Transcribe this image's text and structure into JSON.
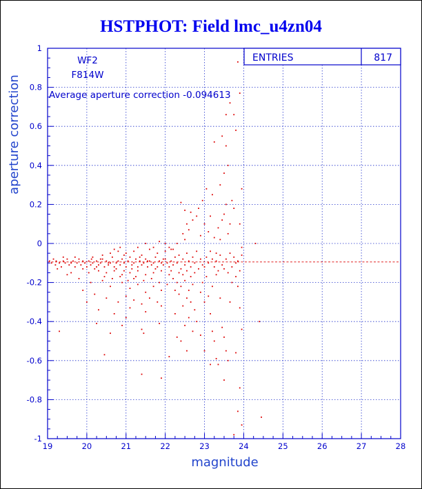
{
  "chart_data": {
    "type": "scatter",
    "title": "HSTPHOT: Field lmc_u4zn04",
    "xlabel": "magnitude",
    "ylabel": "aperture correction",
    "xlim": [
      19,
      28
    ],
    "ylim": [
      -1,
      1
    ],
    "xticks": [
      "19",
      "20",
      "21",
      "22",
      "23",
      "24",
      "25",
      "26",
      "27",
      "28"
    ],
    "yticks": [
      "-1",
      "-0.8",
      "-0.6",
      "-0.4",
      "-0.2",
      "0",
      "0.2",
      "0.4",
      "0.6",
      "0.8",
      "1"
    ],
    "grid": true,
    "annotations": {
      "chip": "WF2",
      "filter": "F814W",
      "average_text": "Average aperture correction -0.094613",
      "average_value": -0.094613
    },
    "stats_box": {
      "label": "ENTRIES",
      "value": "817"
    },
    "colors": {
      "points": "#dd0000",
      "axes": "#0000cc",
      "grid": "#2233cc",
      "average_line": "#dd0000",
      "title": "#0000ee"
    },
    "points": [
      [
        19.05,
        -0.09
      ],
      [
        19.1,
        -0.1
      ],
      [
        19.15,
        -0.08
      ],
      [
        19.2,
        -0.11
      ],
      [
        19.22,
        -0.09
      ],
      [
        19.3,
        -0.1
      ],
      [
        19.35,
        -0.12
      ],
      [
        19.4,
        -0.09
      ],
      [
        19.45,
        -0.1
      ],
      [
        19.5,
        -0.08
      ],
      [
        19.55,
        -0.11
      ],
      [
        19.6,
        -0.1
      ],
      [
        19.65,
        -0.09
      ],
      [
        19.7,
        -0.12
      ],
      [
        19.75,
        -0.1
      ],
      [
        19.8,
        -0.08
      ],
      [
        19.85,
        -0.11
      ],
      [
        19.9,
        -0.09
      ],
      [
        19.95,
        -0.1
      ],
      [
        20.0,
        -0.12
      ],
      [
        20.05,
        -0.09
      ],
      [
        20.1,
        -0.11
      ],
      [
        20.12,
        -0.08
      ],
      [
        20.15,
        -0.1
      ],
      [
        20.2,
        -0.13
      ],
      [
        20.25,
        -0.09
      ],
      [
        20.3,
        -0.11
      ],
      [
        20.35,
        -0.1
      ],
      [
        20.4,
        -0.08
      ],
      [
        20.45,
        -0.12
      ],
      [
        20.5,
        -0.09
      ],
      [
        20.55,
        -0.11
      ],
      [
        20.6,
        -0.1
      ],
      [
        20.65,
        -0.07
      ],
      [
        20.7,
        -0.12
      ],
      [
        20.75,
        -0.1
      ],
      [
        20.8,
        -0.09
      ],
      [
        20.85,
        -0.11
      ],
      [
        20.9,
        -0.08
      ],
      [
        20.95,
        -0.1
      ],
      [
        21.0,
        -0.12
      ],
      [
        21.05,
        -0.09
      ],
      [
        21.1,
        -0.07
      ],
      [
        21.15,
        -0.11
      ],
      [
        21.2,
        -0.1
      ],
      [
        21.25,
        -0.08
      ],
      [
        21.3,
        -0.12
      ],
      [
        21.35,
        -0.09
      ],
      [
        21.4,
        -0.11
      ],
      [
        21.45,
        -0.1
      ],
      [
        21.5,
        -0.08
      ],
      [
        21.55,
        -0.12
      ],
      [
        21.6,
        -0.09
      ],
      [
        21.65,
        -0.11
      ],
      [
        21.7,
        -0.1
      ],
      [
        21.75,
        -0.07
      ],
      [
        21.8,
        -0.12
      ],
      [
        21.85,
        -0.09
      ],
      [
        21.9,
        -0.1
      ],
      [
        21.95,
        -0.08
      ],
      [
        20.4,
        -0.06
      ],
      [
        20.6,
        -0.05
      ],
      [
        20.8,
        -0.04
      ],
      [
        21.0,
        -0.05
      ],
      [
        21.2,
        -0.04
      ],
      [
        21.4,
        -0.06
      ],
      [
        21.6,
        -0.03
      ],
      [
        21.8,
        -0.05
      ],
      [
        22.0,
        -0.04
      ],
      [
        22.2,
        -0.03
      ],
      [
        20.3,
        -0.14
      ],
      [
        20.5,
        -0.15
      ],
      [
        20.7,
        -0.14
      ],
      [
        20.9,
        -0.16
      ],
      [
        21.1,
        -0.15
      ],
      [
        21.3,
        -0.14
      ],
      [
        21.5,
        -0.16
      ],
      [
        21.7,
        -0.15
      ],
      [
        21.9,
        -0.14
      ],
      [
        22.1,
        -0.16
      ],
      [
        19.5,
        -0.16
      ],
      [
        19.8,
        -0.18
      ],
      [
        20.1,
        -0.2
      ],
      [
        20.4,
        -0.19
      ],
      [
        20.6,
        -0.22
      ],
      [
        20.9,
        -0.2
      ],
      [
        21.1,
        -0.23
      ],
      [
        21.3,
        -0.21
      ],
      [
        21.5,
        -0.25
      ],
      [
        21.7,
        -0.22
      ],
      [
        21.9,
        -0.24
      ],
      [
        20.2,
        -0.26
      ],
      [
        20.5,
        -0.28
      ],
      [
        20.8,
        -0.3
      ],
      [
        21.0,
        -0.27
      ],
      [
        21.2,
        -0.29
      ],
      [
        21.4,
        -0.31
      ],
      [
        21.6,
        -0.28
      ],
      [
        21.8,
        -0.3
      ],
      [
        20.0,
        -0.3
      ],
      [
        19.9,
        -0.24
      ],
      [
        20.3,
        -0.34
      ],
      [
        20.7,
        -0.36
      ],
      [
        21.1,
        -0.33
      ],
      [
        21.5,
        -0.35
      ],
      [
        21.9,
        -0.32
      ],
      [
        20.25,
        -0.41
      ],
      [
        20.9,
        -0.42
      ],
      [
        21.4,
        -0.44
      ],
      [
        21.85,
        -0.41
      ],
      [
        20.6,
        -0.46
      ],
      [
        21.45,
        -0.46
      ],
      [
        19.3,
        -0.45
      ],
      [
        20.45,
        -0.57
      ],
      [
        21.4,
        -0.67
      ],
      [
        21.9,
        -0.69
      ],
      [
        19.25,
        -0.13
      ],
      [
        19.6,
        -0.15
      ],
      [
        20.15,
        -0.07
      ],
      [
        20.95,
        -0.06
      ],
      [
        22.0,
        -0.08
      ],
      [
        22.05,
        -0.1
      ],
      [
        22.1,
        -0.12
      ],
      [
        22.15,
        -0.09
      ],
      [
        22.2,
        -0.11
      ],
      [
        22.25,
        -0.07
      ],
      [
        22.3,
        -0.1
      ],
      [
        22.35,
        -0.06
      ],
      [
        22.4,
        -0.13
      ],
      [
        22.45,
        -0.08
      ],
      [
        22.5,
        -0.11
      ],
      [
        22.55,
        -0.05
      ],
      [
        22.6,
        -0.09
      ],
      [
        22.65,
        -0.12
      ],
      [
        22.7,
        -0.07
      ],
      [
        22.75,
        -0.1
      ],
      [
        22.8,
        -0.04
      ],
      [
        22.85,
        -0.13
      ],
      [
        22.9,
        -0.08
      ],
      [
        22.95,
        -0.11
      ],
      [
        22.1,
        -0.02
      ],
      [
        22.3,
        0.0
      ],
      [
        22.5,
        0.02
      ],
      [
        22.45,
        0.05
      ],
      [
        22.6,
        0.07
      ],
      [
        22.55,
        0.1
      ],
      [
        22.7,
        0.12
      ],
      [
        22.65,
        0.16
      ],
      [
        22.4,
        0.21
      ],
      [
        22.5,
        0.17
      ],
      [
        22.8,
        0.14
      ],
      [
        22.9,
        0.04
      ],
      [
        22.85,
        0.18
      ],
      [
        23.0,
        0.1
      ],
      [
        22.95,
        0.22
      ],
      [
        23.05,
        0.28
      ],
      [
        23.1,
        0.06
      ],
      [
        23.15,
        0.14
      ],
      [
        23.2,
        0.25
      ],
      [
        23.25,
        0.03
      ],
      [
        22.2,
        -0.18
      ],
      [
        22.3,
        -0.2
      ],
      [
        22.4,
        -0.22
      ],
      [
        22.5,
        -0.19
      ],
      [
        22.6,
        -0.24
      ],
      [
        22.35,
        -0.26
      ],
      [
        22.55,
        -0.28
      ],
      [
        22.7,
        -0.21
      ],
      [
        22.65,
        -0.3
      ],
      [
        22.45,
        -0.32
      ],
      [
        22.75,
        -0.34
      ],
      [
        22.25,
        -0.36
      ],
      [
        22.6,
        -0.38
      ],
      [
        22.5,
        -0.42
      ],
      [
        22.7,
        -0.45
      ],
      [
        22.4,
        -0.5
      ],
      [
        22.55,
        -0.55
      ],
      [
        22.1,
        -0.58
      ],
      [
        22.3,
        -0.48
      ],
      [
        22.8,
        -0.4
      ],
      [
        22.9,
        -0.25
      ],
      [
        23.0,
        -0.3
      ],
      [
        22.95,
        -0.2
      ],
      [
        23.05,
        -0.17
      ],
      [
        23.1,
        -0.27
      ],
      [
        23.15,
        -0.36
      ],
      [
        23.2,
        -0.45
      ],
      [
        23.25,
        -0.5
      ],
      [
        23.3,
        -0.59
      ],
      [
        23.35,
        -0.62
      ],
      [
        23.2,
        -0.22
      ],
      [
        23.3,
        -0.16
      ],
      [
        23.4,
        -0.28
      ],
      [
        23.45,
        -0.43
      ],
      [
        23.5,
        -0.48
      ],
      [
        23.55,
        -0.55
      ],
      [
        23.6,
        -0.6
      ],
      [
        23.5,
        -0.7
      ],
      [
        23.65,
        -0.3
      ],
      [
        23.7,
        -0.2
      ],
      [
        23.3,
        -0.05
      ],
      [
        23.4,
        0.02
      ],
      [
        23.35,
        0.08
      ],
      [
        23.45,
        0.12
      ],
      [
        23.5,
        0.15
      ],
      [
        23.55,
        0.2
      ],
      [
        23.6,
        0.05
      ],
      [
        23.65,
        0.1
      ],
      [
        23.7,
        0.22
      ],
      [
        23.75,
        0.18
      ],
      [
        23.4,
        0.3
      ],
      [
        23.5,
        0.36
      ],
      [
        23.6,
        0.4
      ],
      [
        23.55,
        0.5
      ],
      [
        23.25,
        0.52
      ],
      [
        23.45,
        0.55
      ],
      [
        23.55,
        0.66
      ],
      [
        23.65,
        0.72
      ],
      [
        23.8,
        0.58
      ],
      [
        23.75,
        0.66
      ],
      [
        23.85,
        0.93
      ],
      [
        23.9,
        0.77
      ],
      [
        23.95,
        0.28
      ],
      [
        23.9,
        0.1
      ],
      [
        23.95,
        -0.02
      ],
      [
        23.8,
        -0.1
      ],
      [
        23.85,
        -0.22
      ],
      [
        23.9,
        -0.33
      ],
      [
        23.95,
        -0.44
      ],
      [
        23.8,
        -0.56
      ],
      [
        23.9,
        -0.74
      ],
      [
        23.85,
        -0.86
      ],
      [
        23.95,
        -0.93
      ],
      [
        23.75,
        -0.98
      ],
      [
        24.3,
        0.0
      ],
      [
        24.4,
        -0.4
      ],
      [
        24.45,
        -0.89
      ],
      [
        23.15,
        -0.62
      ],
      [
        23.0,
        -0.55
      ],
      [
        22.9,
        -0.47
      ],
      [
        21.0,
        -0.38
      ],
      [
        21.2,
        -0.18
      ],
      [
        21.3,
        -0.02
      ],
      [
        21.5,
        0.0
      ],
      [
        21.7,
        -0.02
      ],
      [
        21.85,
        0.01
      ],
      [
        22.0,
        0.0
      ],
      [
        22.15,
        -0.03
      ],
      [
        20.7,
        -0.03
      ],
      [
        20.85,
        -0.02
      ],
      [
        20.35,
        -0.08
      ],
      [
        20.55,
        -0.1
      ],
      [
        20.75,
        -0.13
      ],
      [
        20.95,
        -0.14
      ],
      [
        21.15,
        -0.13
      ],
      [
        21.35,
        -0.07
      ],
      [
        21.55,
        -0.09
      ],
      [
        21.75,
        -0.13
      ],
      [
        21.95,
        -0.11
      ],
      [
        22.15,
        -0.14
      ],
      [
        19.4,
        -0.07
      ],
      [
        19.7,
        -0.07
      ],
      [
        19.9,
        -0.13
      ],
      [
        20.05,
        -0.15
      ],
      [
        20.25,
        -0.12
      ],
      [
        20.45,
        -0.17
      ],
      [
        20.65,
        -0.18
      ],
      [
        20.85,
        -0.17
      ],
      [
        21.05,
        -0.19
      ],
      [
        21.25,
        -0.17
      ],
      [
        21.45,
        -0.19
      ],
      [
        21.65,
        -0.18
      ],
      [
        21.85,
        -0.2
      ],
      [
        22.05,
        -0.21
      ],
      [
        22.25,
        -0.24
      ],
      [
        22.35,
        -0.15
      ],
      [
        22.45,
        -0.16
      ],
      [
        22.55,
        -0.14
      ],
      [
        22.65,
        -0.17
      ],
      [
        22.75,
        -0.15
      ],
      [
        23.0,
        -0.12
      ],
      [
        23.05,
        -0.07
      ],
      [
        23.1,
        -0.1
      ],
      [
        23.15,
        -0.04
      ],
      [
        23.2,
        -0.08
      ],
      [
        23.25,
        -0.12
      ],
      [
        23.3,
        -0.09
      ],
      [
        23.35,
        -0.14
      ],
      [
        23.4,
        -0.06
      ],
      [
        23.45,
        -0.11
      ],
      [
        23.5,
        -0.13
      ],
      [
        23.55,
        -0.08
      ],
      [
        23.6,
        -0.15
      ],
      [
        23.65,
        -0.05
      ],
      [
        23.7,
        -0.12
      ],
      [
        23.75,
        -0.07
      ],
      [
        23.8,
        -0.17
      ],
      [
        23.85,
        -0.09
      ],
      [
        23.9,
        -0.14
      ],
      [
        23.95,
        -0.06
      ]
    ]
  }
}
